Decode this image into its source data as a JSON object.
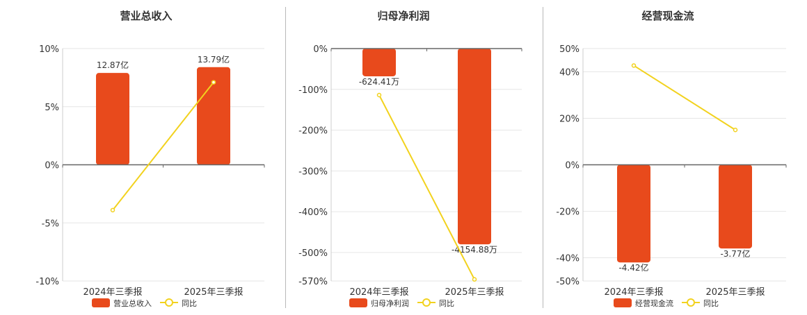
{
  "colors": {
    "bar": "#e84a1c",
    "line": "#f2d21e",
    "grid": "#e6e6e6",
    "axis": "#666666",
    "text": "#333333"
  },
  "chart_data": [
    {
      "type": "bar",
      "title": "营业总收入",
      "categories": [
        "2024年三季报",
        "2025年三季报"
      ],
      "series": [
        {
          "name": "营业总收入",
          "kind": "bar",
          "values": [
            7.9,
            8.4
          ],
          "labels": [
            "12.87亿",
            "13.79亿"
          ]
        },
        {
          "name": "同比",
          "kind": "line",
          "values": [
            -3.9,
            7.1
          ]
        }
      ],
      "yticks": [
        10,
        5,
        0,
        -5,
        -10
      ],
      "yticklabels": [
        "10%",
        "5%",
        "0%",
        "-5%",
        "-10%"
      ],
      "ylim": [
        -10,
        10
      ],
      "grid": true,
      "legend": "bottom"
    },
    {
      "type": "bar",
      "title": "归母净利润",
      "categories": [
        "2024年三季报",
        "2025年三季报"
      ],
      "series": [
        {
          "name": "归母净利润",
          "kind": "bar",
          "values": [
            -68,
            -480
          ],
          "labels": [
            "-624.41万",
            "-4154.88万"
          ]
        },
        {
          "name": "同比",
          "kind": "line",
          "values": [
            -114,
            -566
          ]
        }
      ],
      "yticks": [
        0,
        -100,
        -200,
        -300,
        -400,
        -500,
        -570
      ],
      "yticklabels": [
        "0%",
        "-100%",
        "-200%",
        "-300%",
        "-400%",
        "-500%",
        "-570%"
      ],
      "ylim": [
        -570,
        0
      ],
      "grid": true,
      "legend": "bottom"
    },
    {
      "type": "bar",
      "title": "经营现金流",
      "categories": [
        "2024年三季报",
        "2025年三季报"
      ],
      "series": [
        {
          "name": "经营现金流",
          "kind": "bar",
          "values": [
            -42,
            -36
          ],
          "labels": [
            "-4.42亿",
            "-3.77亿"
          ]
        },
        {
          "name": "同比",
          "kind": "line",
          "values": [
            42.7,
            15
          ]
        }
      ],
      "yticks": [
        50,
        40,
        20,
        0,
        -20,
        -40,
        -50
      ],
      "yticklabels": [
        "50%",
        "40%",
        "20%",
        "0%",
        "-20%",
        "-40%",
        "-50%"
      ],
      "ylim": [
        -50,
        50
      ],
      "grid": true,
      "legend": "bottom"
    }
  ]
}
